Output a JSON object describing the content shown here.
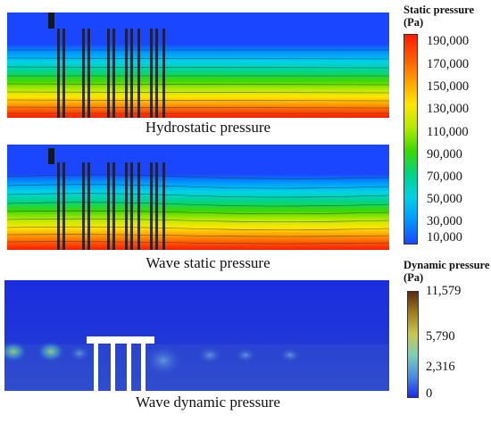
{
  "captions": {
    "hydrostatic": "Hydrostatic pressure",
    "wave_static": "Wave static pressure",
    "wave_dynamic": "Wave dynamic pressure"
  },
  "static_legend": {
    "title_line1": "Static pressure",
    "title_line2": "(Pa)",
    "ticks": [
      "190,000",
      "170,000",
      "150,000",
      "130,000",
      "110,000",
      "90,000",
      "70,000",
      "50,000",
      "30,000",
      "10,000"
    ],
    "colors": [
      "#ff1a00",
      "#ff5a00",
      "#ffa000",
      "#ffe600",
      "#b4ea00",
      "#3ed800",
      "#00d488",
      "#00d2e6",
      "#0096ff",
      "#1a46ff"
    ]
  },
  "dynamic_legend": {
    "title_line1": "Dynamic pressure",
    "title_line2": "(Pa)",
    "ticks": [
      "11,579",
      "5,790",
      "2,316",
      "0"
    ],
    "colors": [
      "#5e2a10",
      "#a07d1a",
      "#c8c84a",
      "#7ad0b4",
      "#4a8ee8",
      "#1a2aee"
    ]
  },
  "colors": {
    "water_top": "#1a46ff",
    "dynamic_background": "#1f35d8",
    "pile": "#1a1a2a",
    "platform": "#ffffff"
  }
}
